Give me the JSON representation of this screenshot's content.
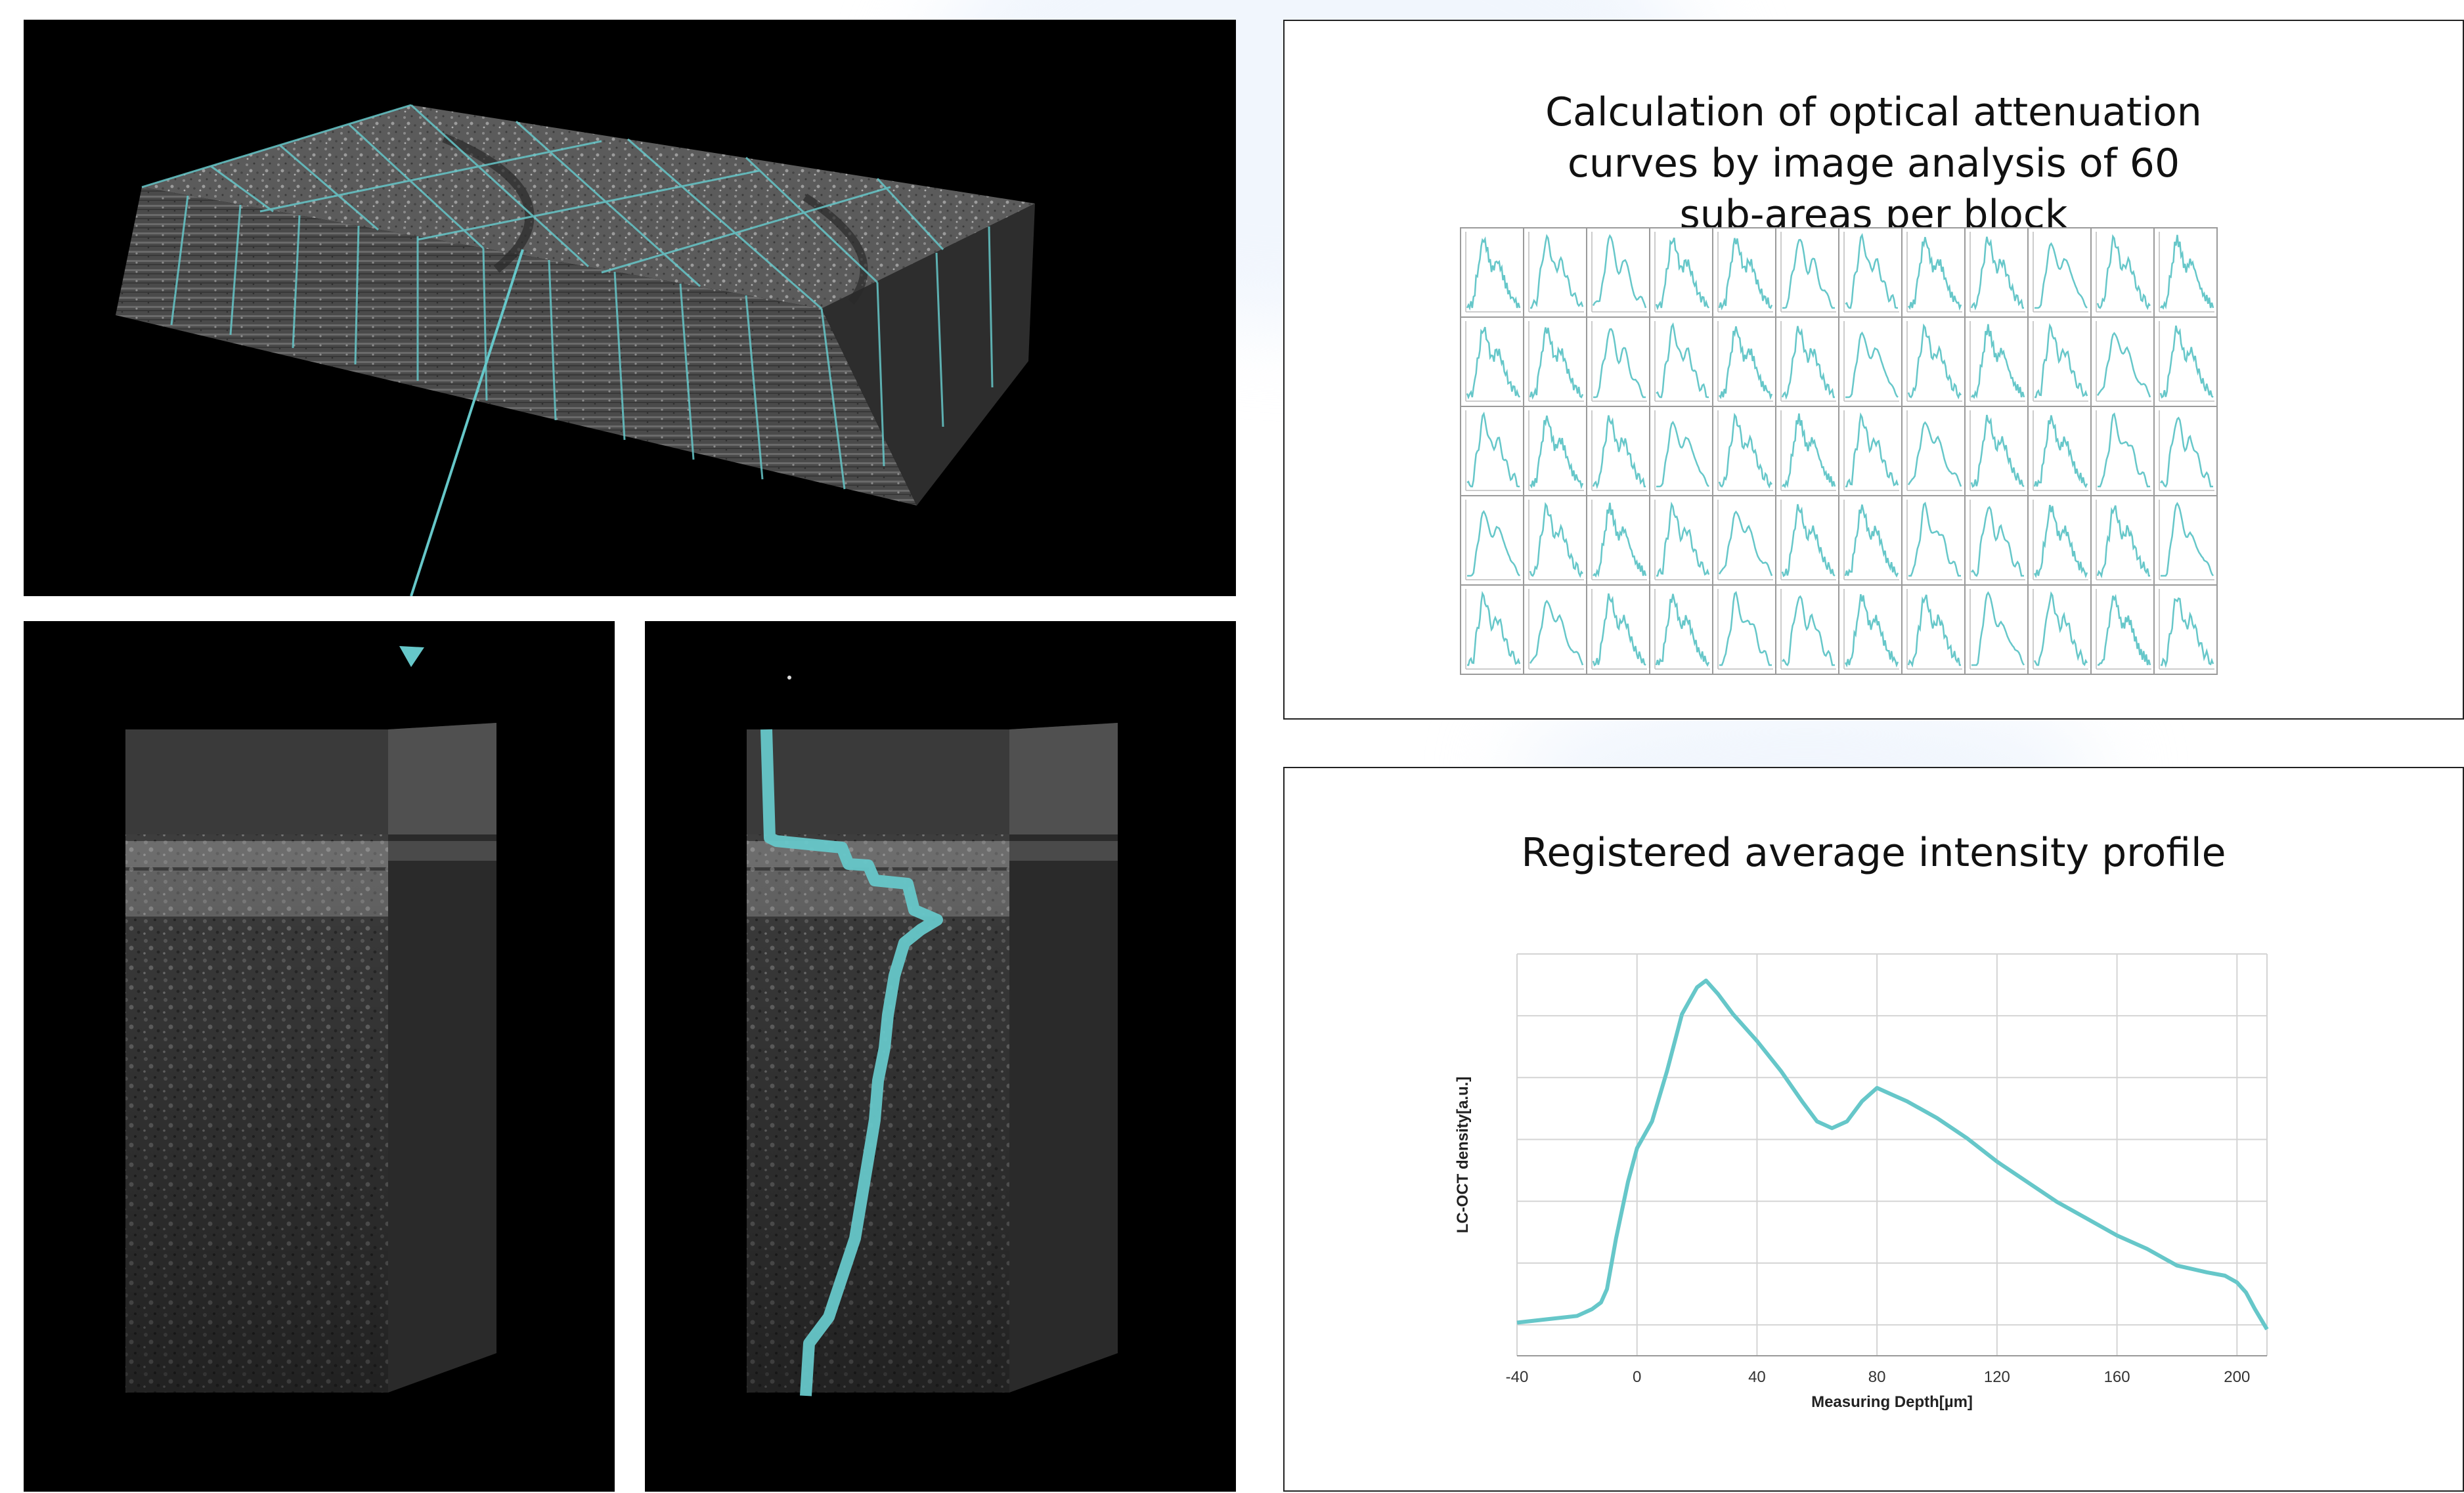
{
  "colors": {
    "accent": "#66c7c9",
    "dark_panel": "#000000",
    "frame": "#222222"
  },
  "attenuation_panel": {
    "title": "Calculation of optical attenuation curves by image analysis of 60 sub-areas per block",
    "grid": {
      "rows": 5,
      "columns": 12
    }
  },
  "profile_panel": {
    "title": "Registered average intensity profile"
  },
  "chart_data": {
    "type": "line",
    "title": "Registered average intensity profile",
    "xlabel": "Measuring Depth[µm]",
    "ylabel": "LC-OCT density[a.u.]",
    "xlim": [
      -40,
      210
    ],
    "x_ticks": [
      "-40",
      "0",
      "40",
      "80",
      "120",
      "160",
      "200"
    ],
    "grid": true,
    "series": [
      {
        "x": [
          -40,
          -30,
          -20,
          -15,
          -12,
          -10,
          -7,
          -3,
          0,
          5,
          10,
          15,
          20,
          23,
          27,
          32,
          40,
          48,
          55,
          60,
          65,
          70,
          75,
          80,
          85,
          90,
          100,
          110,
          120,
          130,
          140,
          150,
          160,
          170,
          180,
          190,
          196,
          200,
          203,
          206,
          208,
          210
        ],
        "y": [
          0.0,
          0.01,
          0.02,
          0.04,
          0.06,
          0.1,
          0.25,
          0.42,
          0.52,
          0.6,
          0.75,
          0.92,
          1.0,
          1.02,
          0.98,
          0.92,
          0.84,
          0.75,
          0.66,
          0.6,
          0.58,
          0.6,
          0.66,
          0.7,
          0.68,
          0.66,
          0.61,
          0.55,
          0.48,
          0.42,
          0.36,
          0.31,
          0.26,
          0.22,
          0.17,
          0.15,
          0.14,
          0.12,
          0.09,
          0.04,
          0.01,
          -0.02
        ]
      }
    ]
  }
}
